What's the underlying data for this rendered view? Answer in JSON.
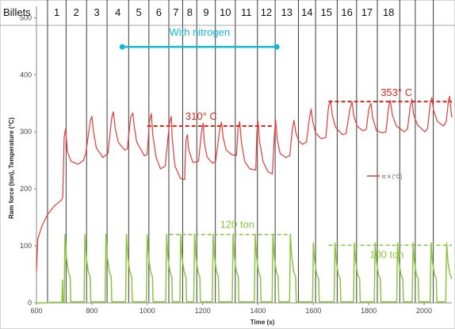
{
  "chart_data": {
    "type": "line",
    "xlabel": "Time (s)",
    "ylabel": "Ram force (ton), Temperature (°C)",
    "xlim": [
      600,
      2100
    ],
    "ylim": [
      0,
      520
    ],
    "x_ticks": [
      600,
      800,
      1000,
      1200,
      1400,
      1600,
      1800,
      2000
    ],
    "y_ticks": [
      0,
      100,
      200,
      300,
      400,
      500
    ],
    "grid": false,
    "colors": {
      "temperature": "#e63a35",
      "force": "#8cc63f",
      "nitrogen": "#12b6d6",
      "billet_lines": "#3a3a3a",
      "ref_red": "#e0261f"
    },
    "billets": {
      "header": "Billets",
      "labels": [
        "1",
        "2",
        "3",
        "4",
        "5",
        "6",
        "7",
        "8",
        "9",
        "10",
        "11",
        "12",
        "13",
        "14",
        "15",
        "16",
        "17",
        "18"
      ],
      "boundary_times": [
        640,
        707,
        781,
        855,
        933,
        1006,
        1078,
        1128,
        1179,
        1246,
        1318,
        1398,
        1462,
        1546,
        1608,
        1686,
        1756,
        1831,
        1912,
        1968,
        2033
      ]
    },
    "series": [
      {
        "name": "tc k (°C)",
        "points": [
          [
            600,
            55
          ],
          [
            605,
            112
          ],
          [
            620,
            135
          ],
          [
            640,
            155
          ],
          [
            665,
            170
          ],
          [
            690,
            180
          ],
          [
            695,
            185
          ],
          [
            700,
            290
          ],
          [
            705,
            305
          ],
          [
            712,
            265
          ],
          [
            725,
            248
          ],
          [
            750,
            243
          ],
          [
            770,
            250
          ],
          [
            778,
            262
          ],
          [
            795,
            320
          ],
          [
            800,
            327
          ],
          [
            806,
            300
          ],
          [
            816,
            272
          ],
          [
            840,
            255
          ],
          [
            858,
            262
          ],
          [
            872,
            325
          ],
          [
            878,
            335
          ],
          [
            884,
            308
          ],
          [
            895,
            282
          ],
          [
            918,
            268
          ],
          [
            928,
            270
          ],
          [
            940,
            325
          ],
          [
            948,
            333
          ],
          [
            953,
            310
          ],
          [
            962,
            282
          ],
          [
            990,
            258
          ],
          [
            1000,
            260
          ],
          [
            1008,
            318
          ],
          [
            1015,
            332
          ],
          [
            1020,
            295
          ],
          [
            1032,
            255
          ],
          [
            1048,
            235
          ],
          [
            1065,
            240
          ],
          [
            1080,
            315
          ],
          [
            1087,
            327
          ],
          [
            1090,
            290
          ],
          [
            1100,
            240
          ],
          [
            1120,
            218
          ],
          [
            1135,
            216
          ],
          [
            1140,
            285
          ],
          [
            1145,
            295
          ],
          [
            1150,
            268
          ],
          [
            1165,
            246
          ],
          [
            1185,
            248
          ],
          [
            1196,
            300
          ],
          [
            1202,
            315
          ],
          [
            1206,
            282
          ],
          [
            1216,
            256
          ],
          [
            1235,
            245
          ],
          [
            1247,
            248
          ],
          [
            1262,
            305
          ],
          [
            1268,
            317
          ],
          [
            1274,
            290
          ],
          [
            1285,
            268
          ],
          [
            1305,
            260
          ],
          [
            1322,
            258
          ],
          [
            1328,
            305
          ],
          [
            1334,
            318
          ],
          [
            1340,
            282
          ],
          [
            1352,
            248
          ],
          [
            1370,
            235
          ],
          [
            1392,
            233
          ],
          [
            1396,
            300
          ],
          [
            1400,
            318
          ],
          [
            1406,
            282
          ],
          [
            1418,
            248
          ],
          [
            1436,
            230
          ],
          [
            1452,
            226
          ],
          [
            1460,
            300
          ],
          [
            1464,
            320
          ],
          [
            1470,
            285
          ],
          [
            1480,
            262
          ],
          [
            1500,
            255
          ],
          [
            1515,
            258
          ],
          [
            1524,
            305
          ],
          [
            1530,
            320
          ],
          [
            1536,
            300
          ],
          [
            1546,
            285
          ],
          [
            1560,
            278
          ],
          [
            1575,
            282
          ],
          [
            1586,
            325
          ],
          [
            1592,
            340
          ],
          [
            1598,
            318
          ],
          [
            1608,
            298
          ],
          [
            1628,
            288
          ],
          [
            1645,
            290
          ],
          [
            1655,
            345
          ],
          [
            1662,
            355
          ],
          [
            1668,
            330
          ],
          [
            1680,
            308
          ],
          [
            1705,
            295
          ],
          [
            1718,
            297
          ],
          [
            1732,
            340
          ],
          [
            1740,
            352
          ],
          [
            1746,
            328
          ],
          [
            1758,
            310
          ],
          [
            1778,
            302
          ],
          [
            1791,
            304
          ],
          [
            1800,
            340
          ],
          [
            1808,
            350
          ],
          [
            1814,
            325
          ],
          [
            1828,
            302
          ],
          [
            1850,
            298
          ],
          [
            1862,
            300
          ],
          [
            1872,
            345
          ],
          [
            1878,
            355
          ],
          [
            1885,
            330
          ],
          [
            1900,
            310
          ],
          [
            1928,
            300
          ],
          [
            1940,
            305
          ],
          [
            1950,
            345
          ],
          [
            1956,
            357
          ],
          [
            1962,
            330
          ],
          [
            1976,
            312
          ],
          [
            2002,
            300
          ],
          [
            2012,
            305
          ],
          [
            2022,
            350
          ],
          [
            2028,
            360
          ],
          [
            2034,
            338
          ],
          [
            2048,
            318
          ],
          [
            2070,
            310
          ],
          [
            2080,
            318
          ],
          [
            2088,
            355
          ],
          [
            2092,
            362
          ],
          [
            2096,
            342
          ],
          [
            2100,
            325
          ]
        ]
      },
      {
        "name": "Ram force (ton)",
        "points": [
          [
            600,
            0
          ],
          [
            648,
            0
          ],
          [
            648,
            1
          ],
          [
            692,
            1
          ],
          [
            694,
            40
          ],
          [
            696,
            1
          ],
          [
            700,
            1
          ],
          [
            703,
            120
          ],
          [
            708,
            80
          ],
          [
            715,
            55
          ],
          [
            722,
            45
          ],
          [
            724,
            2
          ],
          [
            772,
            2
          ],
          [
            775,
            120
          ],
          [
            780,
            80
          ],
          [
            787,
            55
          ],
          [
            794,
            45
          ],
          [
            796,
            2
          ],
          [
            848,
            2
          ],
          [
            851,
            120
          ],
          [
            856,
            80
          ],
          [
            863,
            55
          ],
          [
            870,
            45
          ],
          [
            872,
            2
          ],
          [
            922,
            2
          ],
          [
            925,
            120
          ],
          [
            930,
            80
          ],
          [
            937,
            55
          ],
          [
            944,
            45
          ],
          [
            946,
            2
          ],
          [
            997,
            2
          ],
          [
            1000,
            120
          ],
          [
            1005,
            80
          ],
          [
            1012,
            55
          ],
          [
            1019,
            45
          ],
          [
            1021,
            2
          ],
          [
            1067,
            2
          ],
          [
            1070,
            120
          ],
          [
            1075,
            80
          ],
          [
            1082,
            55
          ],
          [
            1089,
            45
          ],
          [
            1091,
            2
          ],
          [
            1118,
            2
          ],
          [
            1121,
            120
          ],
          [
            1126,
            80
          ],
          [
            1133,
            55
          ],
          [
            1140,
            45
          ],
          [
            1142,
            2
          ],
          [
            1168,
            2
          ],
          [
            1171,
            120
          ],
          [
            1176,
            80
          ],
          [
            1183,
            55
          ],
          [
            1190,
            45
          ],
          [
            1192,
            2
          ],
          [
            1235,
            2
          ],
          [
            1238,
            120
          ],
          [
            1243,
            80
          ],
          [
            1250,
            55
          ],
          [
            1257,
            45
          ],
          [
            1259,
            2
          ],
          [
            1307,
            2
          ],
          [
            1310,
            120
          ],
          [
            1315,
            80
          ],
          [
            1322,
            55
          ],
          [
            1329,
            45
          ],
          [
            1331,
            2
          ],
          [
            1387,
            2
          ],
          [
            1390,
            120
          ],
          [
            1395,
            80
          ],
          [
            1402,
            55
          ],
          [
            1409,
            45
          ],
          [
            1411,
            2
          ],
          [
            1451,
            2
          ],
          [
            1454,
            120
          ],
          [
            1459,
            80
          ],
          [
            1466,
            55
          ],
          [
            1473,
            45
          ],
          [
            1475,
            2
          ],
          [
            1514,
            2
          ],
          [
            1517,
            120
          ],
          [
            1522,
            80
          ],
          [
            1529,
            55
          ],
          [
            1536,
            45
          ],
          [
            1538,
            2
          ],
          [
            1597,
            2
          ],
          [
            1600,
            105
          ],
          [
            1605,
            72
          ],
          [
            1612,
            50
          ],
          [
            1619,
            42
          ],
          [
            1621,
            2
          ],
          [
            1675,
            2
          ],
          [
            1678,
            105
          ],
          [
            1683,
            72
          ],
          [
            1690,
            50
          ],
          [
            1697,
            42
          ],
          [
            1699,
            2
          ],
          [
            1745,
            2
          ],
          [
            1748,
            105
          ],
          [
            1753,
            72
          ],
          [
            1760,
            50
          ],
          [
            1767,
            42
          ],
          [
            1769,
            2
          ],
          [
            1820,
            2
          ],
          [
            1823,
            105
          ],
          [
            1828,
            72
          ],
          [
            1835,
            50
          ],
          [
            1842,
            42
          ],
          [
            1844,
            2
          ],
          [
            1901,
            2
          ],
          [
            1904,
            105
          ],
          [
            1909,
            72
          ],
          [
            1916,
            50
          ],
          [
            1923,
            42
          ],
          [
            1925,
            2
          ],
          [
            1957,
            2
          ],
          [
            1960,
            105
          ],
          [
            1965,
            72
          ],
          [
            1972,
            50
          ],
          [
            1979,
            42
          ],
          [
            1981,
            2
          ],
          [
            2022,
            2
          ],
          [
            2025,
            105
          ],
          [
            2030,
            72
          ],
          [
            2037,
            50
          ],
          [
            2044,
            42
          ],
          [
            2046,
            2
          ],
          [
            2078,
            2
          ],
          [
            2081,
            105
          ],
          [
            2086,
            72
          ],
          [
            2093,
            50
          ],
          [
            2100,
            42
          ]
        ]
      }
    ],
    "legend": {
      "position": "right",
      "label": "tc k (°C)"
    },
    "annotations": {
      "nitrogen": {
        "label": "With nitrogen",
        "x_start": 910,
        "x_end": 1468,
        "y": 449
      },
      "temp_310": {
        "label": "310°  C",
        "x_start": 1000,
        "x_end": 1455,
        "y": 310
      },
      "temp_353": {
        "label": "353°  C",
        "x_start": 1655,
        "x_end": 2100,
        "y": 353
      },
      "force_120": {
        "label": "120 ton",
        "x_start": 1080,
        "x_end": 1520,
        "y": 120
      },
      "force_100": {
        "label": "100 ton",
        "x_start": 1655,
        "x_end": 2100,
        "y": 101
      }
    }
  }
}
